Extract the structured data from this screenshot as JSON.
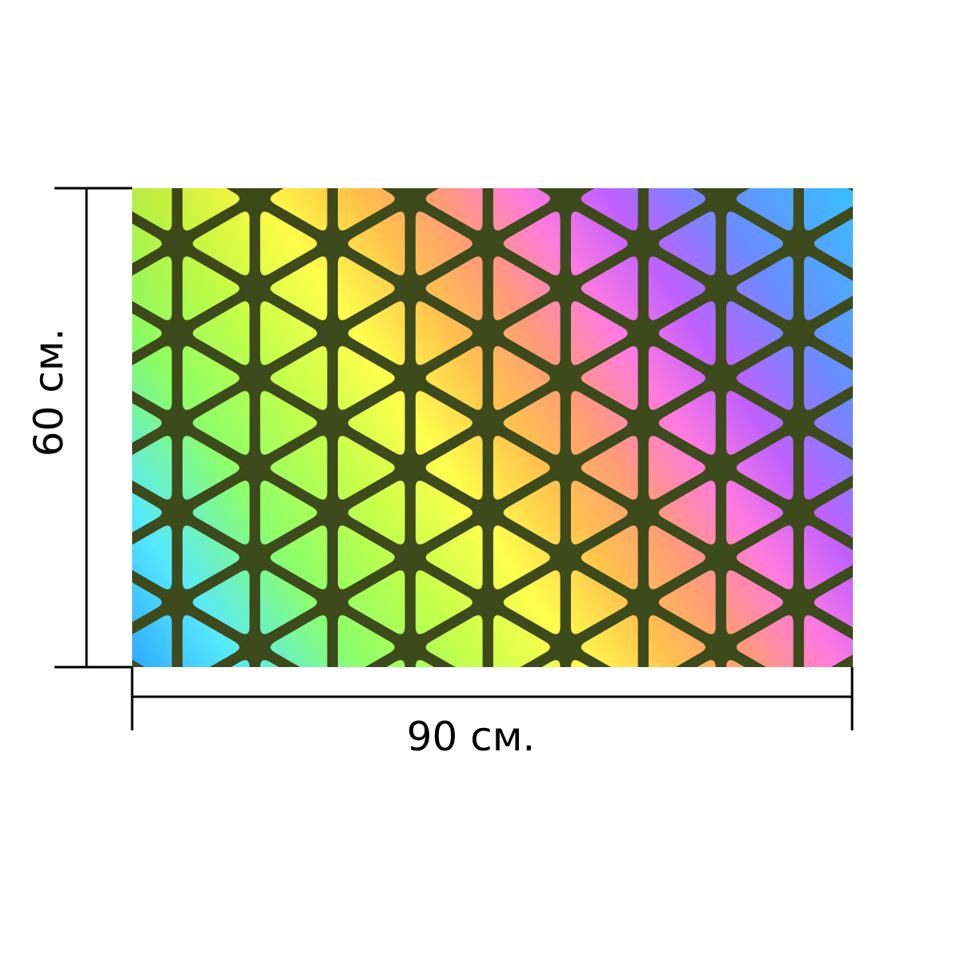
{
  "dimensions": {
    "width_label": "90 см.",
    "height_label": "60 см."
  },
  "pattern": {
    "description_colors": {
      "grid_line": "#3d4a1c",
      "orange": "#ffb84d",
      "magenta": "#ff66ff",
      "violet": "#c05cff",
      "blue": "#5aa8ff",
      "sky": "#3dbfff",
      "yellow": "#ffff4d",
      "lime": "#b8ff4d",
      "green": "#8cff66",
      "cyan": "#66ffff",
      "salmon": "#ff9980",
      "pink": "#ff88dd"
    }
  }
}
